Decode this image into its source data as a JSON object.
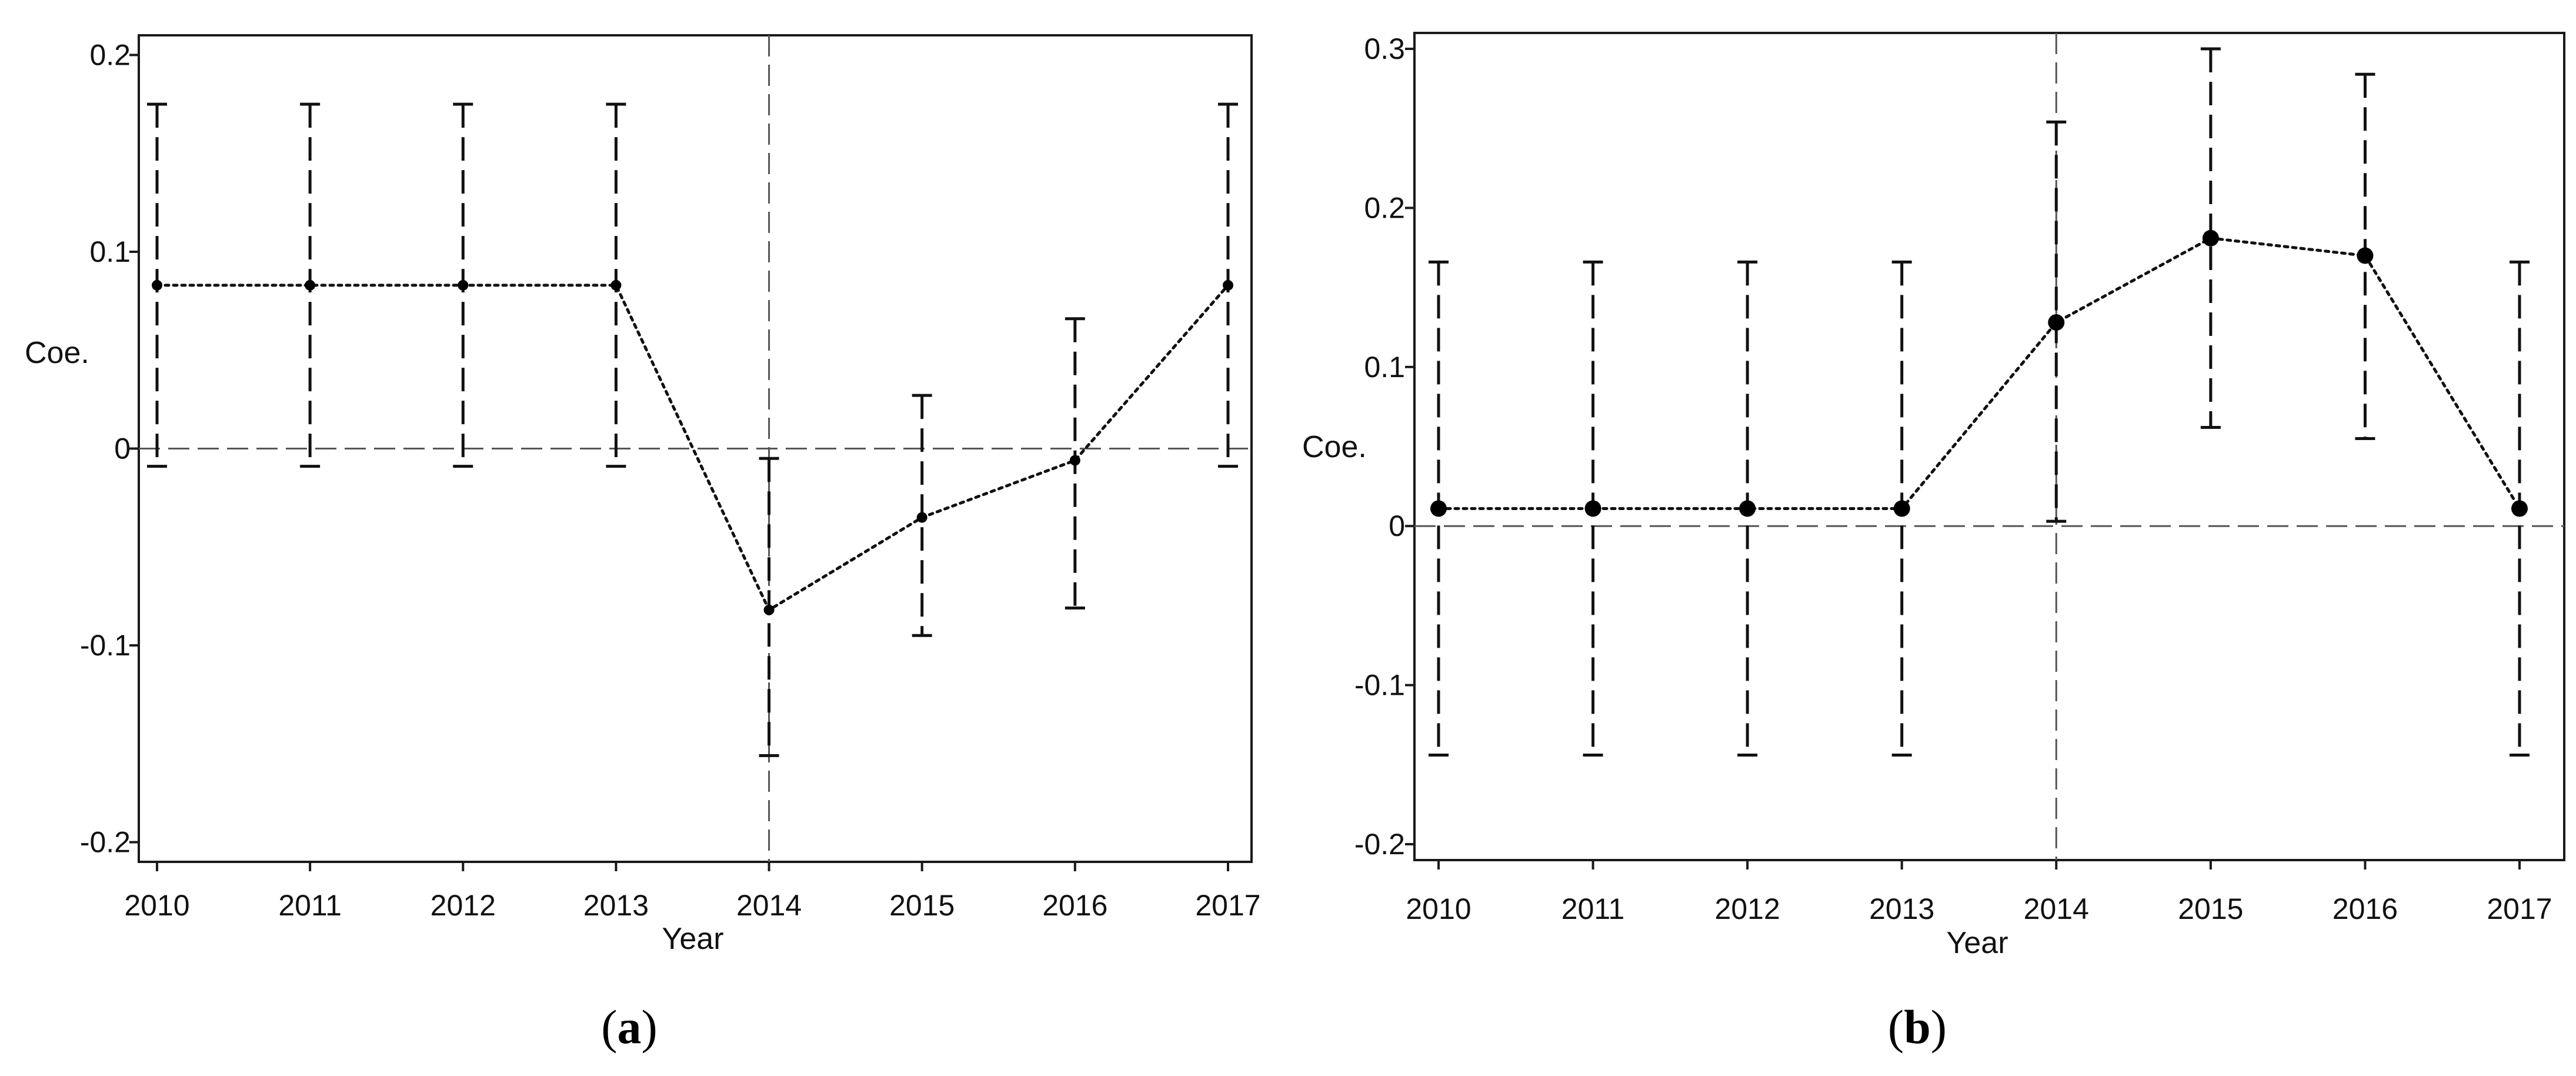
{
  "chart_data": [
    {
      "type": "scatter",
      "panel_label": "a",
      "xlabel": "Year",
      "ylabel": "Coe.",
      "categories": [
        "2010",
        "2011",
        "2012",
        "2013",
        "2014",
        "2015",
        "2016",
        "2017"
      ],
      "series": [
        {
          "values": [
            0.083,
            0.083,
            0.083,
            0.083,
            -0.082,
            -0.035,
            -0.006,
            0.083
          ],
          "ci_upper": [
            0.175,
            0.175,
            0.175,
            0.175,
            -0.005,
            0.027,
            0.066,
            0.175
          ],
          "ci_lower": [
            -0.009,
            -0.009,
            -0.009,
            -0.009,
            -0.156,
            -0.095,
            -0.081,
            -0.009
          ]
        }
      ],
      "ylim": [
        -0.21,
        0.21
      ],
      "yticks": [
        -0.2,
        -0.1,
        0,
        0.1,
        0.2
      ],
      "ytick_labels": [
        "-0.2",
        "-0.1",
        "0",
        "0.1",
        "0.2"
      ],
      "reference_lines": {
        "y": 0,
        "x": "2014"
      },
      "grid": false
    },
    {
      "type": "scatter",
      "panel_label": "b",
      "xlabel": "Year",
      "ylabel": "Coe.",
      "categories": [
        "2010",
        "2011",
        "2012",
        "2013",
        "2014",
        "2015",
        "2016",
        "2017"
      ],
      "series": [
        {
          "values": [
            0.011,
            0.011,
            0.011,
            0.011,
            0.128,
            0.181,
            0.17,
            0.011
          ],
          "ci_upper": [
            0.166,
            0.166,
            0.166,
            0.166,
            0.254,
            0.3,
            0.284,
            0.166
          ],
          "ci_lower": [
            -0.144,
            -0.144,
            -0.144,
            -0.144,
            0.003,
            0.062,
            0.055,
            -0.144
          ]
        }
      ],
      "ylim": [
        -0.21,
        0.31
      ],
      "yticks": [
        -0.2,
        -0.1,
        0,
        0.1,
        0.2,
        0.3
      ],
      "ytick_labels": [
        "-0.2",
        "-0.1",
        "0",
        "0.1",
        "0.2",
        "0.3"
      ],
      "reference_lines": {
        "y": 0,
        "x": "2014"
      },
      "grid": false
    }
  ]
}
